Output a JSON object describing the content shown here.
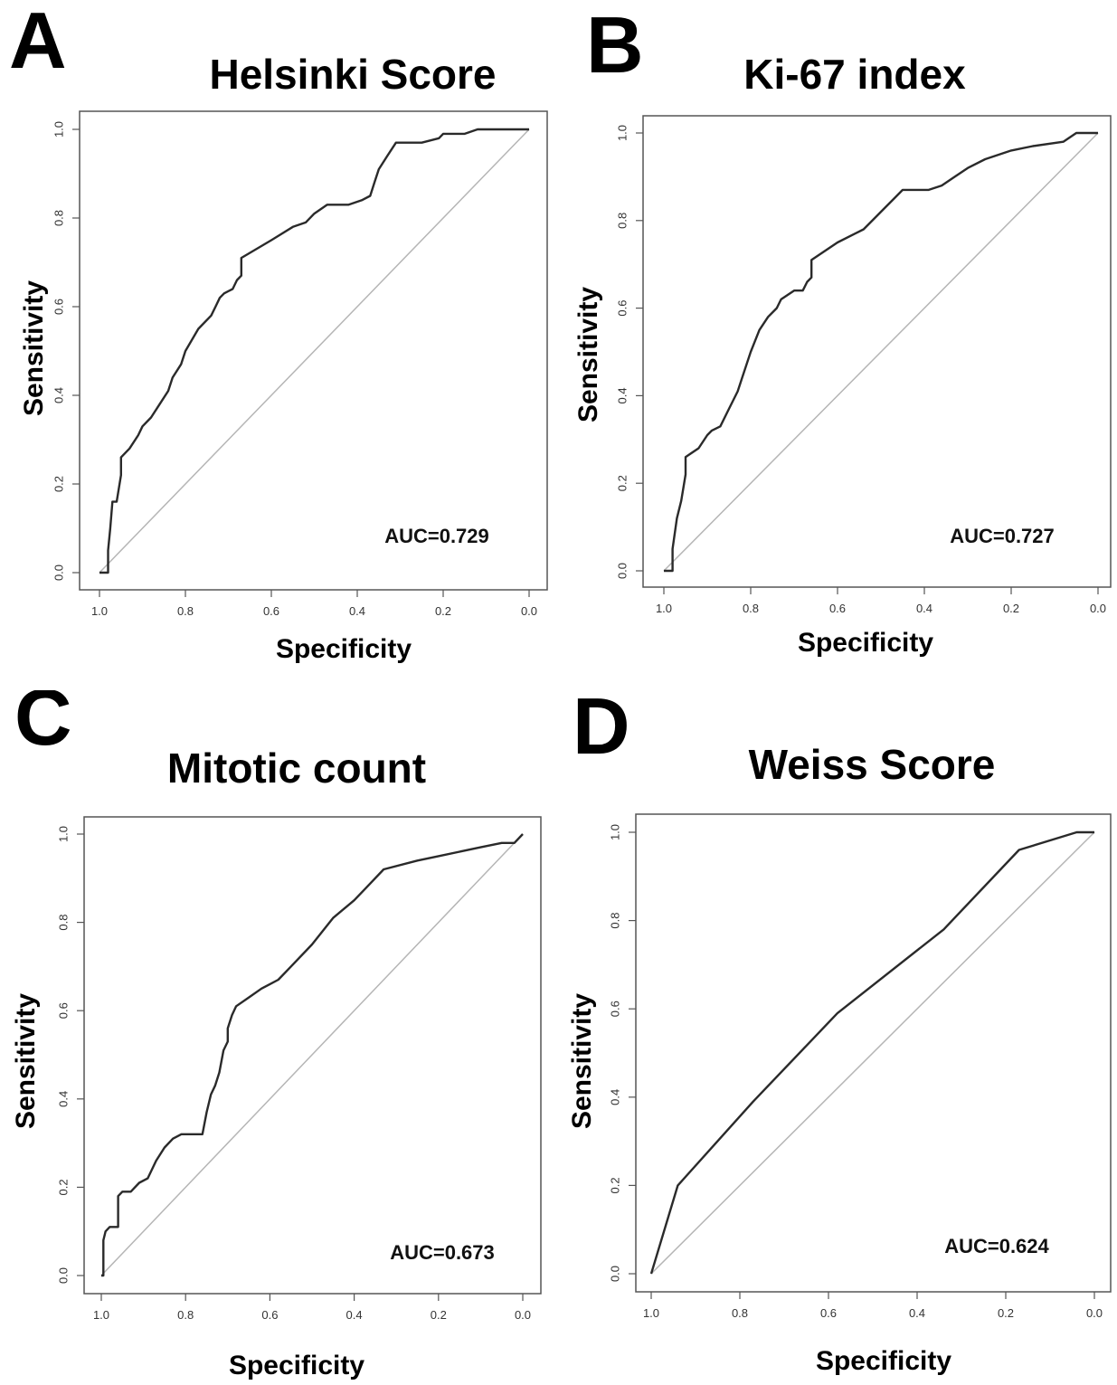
{
  "chart_data": [
    {
      "type": "line",
      "panel_label": "A",
      "title": "Helsinki Score",
      "xlabel": "Specificity",
      "ylabel": "Sensitivity",
      "xlim": [
        1.0,
        0.0
      ],
      "ylim": [
        0.0,
        1.0
      ],
      "x_reversed": true,
      "xticks": [
        "1.0",
        "0.8",
        "0.6",
        "0.4",
        "0.2",
        "0.0"
      ],
      "yticks": [
        "0.0",
        "0.2",
        "0.4",
        "0.6",
        "0.8",
        "1.0"
      ],
      "reference_line": "diagonal",
      "annotation": "AUC=0.729",
      "series": [
        {
          "x": [
            1.0,
            0.98,
            0.98,
            0.975,
            0.97,
            0.96,
            0.95,
            0.95,
            0.93,
            0.91,
            0.9,
            0.88,
            0.86,
            0.84,
            0.83,
            0.81,
            0.8,
            0.77,
            0.74,
            0.73,
            0.72,
            0.71,
            0.69,
            0.68,
            0.67,
            0.67,
            0.6,
            0.55,
            0.52,
            0.5,
            0.47,
            0.45,
            0.42,
            0.39,
            0.37,
            0.36,
            0.35,
            0.33,
            0.31,
            0.27,
            0.25,
            0.21,
            0.2,
            0.19,
            0.15,
            0.12,
            0.1,
            0.05,
            0.0
          ],
          "y": [
            0.0,
            0.0,
            0.05,
            0.1,
            0.16,
            0.16,
            0.22,
            0.26,
            0.28,
            0.31,
            0.33,
            0.35,
            0.38,
            0.41,
            0.44,
            0.47,
            0.5,
            0.55,
            0.58,
            0.6,
            0.62,
            0.63,
            0.64,
            0.66,
            0.67,
            0.71,
            0.75,
            0.78,
            0.79,
            0.81,
            0.83,
            0.83,
            0.83,
            0.84,
            0.85,
            0.88,
            0.91,
            0.94,
            0.97,
            0.97,
            0.97,
            0.98,
            0.99,
            0.99,
            0.99,
            1.0,
            1.0,
            1.0,
            1.0
          ]
        }
      ]
    },
    {
      "type": "line",
      "panel_label": "B",
      "title": "Ki-67 index",
      "xlabel": "Specificity",
      "ylabel": "Sensitivity",
      "xlim": [
        1.0,
        0.0
      ],
      "ylim": [
        0.0,
        1.0
      ],
      "x_reversed": true,
      "xticks": [
        "1.0",
        "0.8",
        "0.6",
        "0.4",
        "0.2",
        "0.0"
      ],
      "yticks": [
        "0.0",
        "0.2",
        "0.4",
        "0.6",
        "0.8",
        "1.0"
      ],
      "reference_line": "diagonal",
      "annotation": "AUC=0.727",
      "series": [
        {
          "x": [
            1.0,
            0.98,
            0.98,
            0.97,
            0.96,
            0.95,
            0.95,
            0.92,
            0.9,
            0.89,
            0.87,
            0.85,
            0.83,
            0.82,
            0.81,
            0.8,
            0.78,
            0.76,
            0.74,
            0.73,
            0.7,
            0.68,
            0.67,
            0.66,
            0.66,
            0.6,
            0.56,
            0.54,
            0.51,
            0.5,
            0.47,
            0.45,
            0.42,
            0.39,
            0.36,
            0.33,
            0.3,
            0.26,
            0.2,
            0.15,
            0.08,
            0.05,
            0.0
          ],
          "y": [
            0.0,
            0.0,
            0.05,
            0.12,
            0.16,
            0.22,
            0.26,
            0.28,
            0.31,
            0.32,
            0.33,
            0.37,
            0.41,
            0.44,
            0.47,
            0.5,
            0.55,
            0.58,
            0.6,
            0.62,
            0.64,
            0.64,
            0.66,
            0.67,
            0.71,
            0.75,
            0.77,
            0.78,
            0.81,
            0.82,
            0.85,
            0.87,
            0.87,
            0.87,
            0.88,
            0.9,
            0.92,
            0.94,
            0.96,
            0.97,
            0.98,
            1.0,
            1.0
          ]
        }
      ]
    },
    {
      "type": "line",
      "panel_label": "C",
      "title": "Mitotic count",
      "xlabel": "Specificity",
      "ylabel": "Sensitivity",
      "xlim": [
        1.0,
        0.0
      ],
      "ylim": [
        0.0,
        1.0
      ],
      "x_reversed": true,
      "xticks": [
        "1.0",
        "0.8",
        "0.6",
        "0.4",
        "0.2",
        "0.0"
      ],
      "yticks": [
        "0.0",
        "0.2",
        "0.4",
        "0.6",
        "0.8",
        "1.0"
      ],
      "reference_line": "diagonal",
      "annotation": "AUC=0.673",
      "series": [
        {
          "x": [
            1.0,
            0.995,
            0.995,
            0.99,
            0.98,
            0.97,
            0.96,
            0.96,
            0.95,
            0.93,
            0.91,
            0.89,
            0.87,
            0.85,
            0.83,
            0.81,
            0.79,
            0.76,
            0.75,
            0.74,
            0.73,
            0.72,
            0.71,
            0.7,
            0.7,
            0.69,
            0.68,
            0.65,
            0.62,
            0.6,
            0.58,
            0.55,
            0.5,
            0.45,
            0.4,
            0.37,
            0.33,
            0.25,
            0.2,
            0.1,
            0.05,
            0.02,
            0.0
          ],
          "y": [
            0.0,
            0.0,
            0.08,
            0.1,
            0.11,
            0.11,
            0.11,
            0.18,
            0.19,
            0.19,
            0.21,
            0.22,
            0.26,
            0.29,
            0.31,
            0.32,
            0.32,
            0.32,
            0.37,
            0.41,
            0.43,
            0.46,
            0.51,
            0.53,
            0.56,
            0.59,
            0.61,
            0.63,
            0.65,
            0.66,
            0.67,
            0.7,
            0.75,
            0.81,
            0.85,
            0.88,
            0.92,
            0.94,
            0.95,
            0.97,
            0.98,
            0.98,
            1.0
          ]
        }
      ]
    },
    {
      "type": "line",
      "panel_label": "D",
      "title": "Weiss Score",
      "xlabel": "Specificity",
      "ylabel": "Sensitivity",
      "xlim": [
        1.0,
        0.0
      ],
      "ylim": [
        0.0,
        1.0
      ],
      "x_reversed": true,
      "xticks": [
        "1.0",
        "0.8",
        "0.6",
        "0.4",
        "0.2",
        "0.0"
      ],
      "yticks": [
        "0.0",
        "0.2",
        "0.4",
        "0.6",
        "0.8",
        "1.0"
      ],
      "reference_line": "diagonal",
      "annotation": "AUC=0.624",
      "series": [
        {
          "x": [
            1.0,
            0.94,
            0.77,
            0.58,
            0.34,
            0.17,
            0.04,
            0.0
          ],
          "y": [
            0.0,
            0.2,
            0.39,
            0.59,
            0.78,
            0.96,
            1.0,
            1.0
          ]
        }
      ]
    }
  ]
}
